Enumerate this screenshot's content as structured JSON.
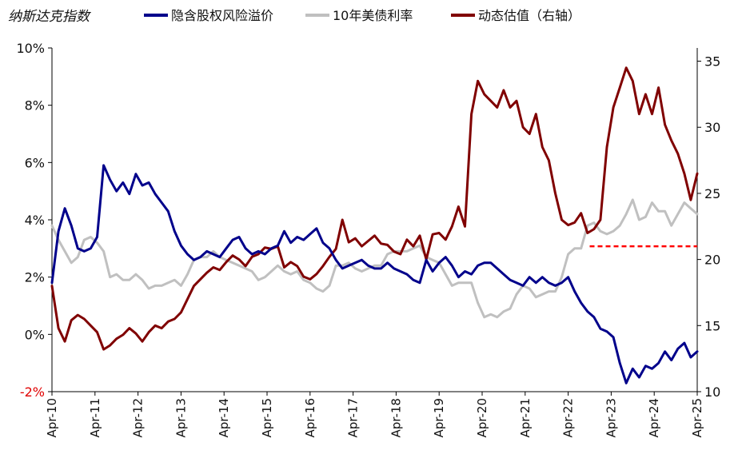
{
  "chart_data": {
    "type": "line",
    "title": "纳斯达克指数",
    "legend_position": "top",
    "grid": false,
    "colors": {
      "erp": "#00008b",
      "us10y": "#c0c0c0",
      "pe": "#800000",
      "reference": "#ff0000",
      "negative_tick": "#e00000"
    },
    "left_axis": {
      "ylim": [
        -2,
        10
      ],
      "ticks": [
        -2,
        0,
        2,
        4,
        6,
        8,
        10
      ],
      "tick_labels": [
        "-2%",
        "0%",
        "2%",
        "4%",
        "6%",
        "8%",
        "10%"
      ]
    },
    "right_axis": {
      "ylim": [
        10,
        36
      ],
      "ticks": [
        10,
        15,
        20,
        25,
        30,
        35
      ],
      "tick_labels": [
        "10",
        "15",
        "20",
        "25",
        "30",
        "35"
      ]
    },
    "x_axis": {
      "xlim": [
        2010.25,
        2025.25
      ],
      "ticks": [
        2010.25,
        2011.25,
        2012.25,
        2013.25,
        2014.25,
        2015.25,
        2016.25,
        2017.25,
        2018.25,
        2019.25,
        2020.25,
        2021.25,
        2022.25,
        2023.25,
        2024.25,
        2025.25
      ],
      "tick_labels": [
        "Apr-10",
        "Apr-11",
        "Apr-12",
        "Apr-13",
        "Apr-14",
        "Apr-15",
        "Apr-16",
        "Apr-17",
        "Apr-18",
        "Apr-19",
        "Apr-20",
        "Apr-21",
        "Apr-22",
        "Apr-23",
        "Apr-24",
        "Apr-25"
      ]
    },
    "series": [
      {
        "name": "隐含股权风险溢价",
        "axis": "left",
        "color": "#00008b",
        "x": [
          2010.25,
          2010.4,
          2010.55,
          2010.7,
          2010.85,
          2011.0,
          2011.15,
          2011.3,
          2011.45,
          2011.6,
          2011.75,
          2011.9,
          2012.05,
          2012.2,
          2012.35,
          2012.5,
          2012.65,
          2012.8,
          2012.95,
          2013.1,
          2013.25,
          2013.4,
          2013.55,
          2013.7,
          2013.85,
          2014.0,
          2014.15,
          2014.3,
          2014.45,
          2014.6,
          2014.75,
          2014.9,
          2015.05,
          2015.2,
          2015.35,
          2015.5,
          2015.65,
          2015.8,
          2015.95,
          2016.1,
          2016.25,
          2016.4,
          2016.55,
          2016.7,
          2016.85,
          2017.0,
          2017.15,
          2017.3,
          2017.45,
          2017.6,
          2017.75,
          2017.9,
          2018.05,
          2018.2,
          2018.35,
          2018.5,
          2018.65,
          2018.8,
          2018.95,
          2019.1,
          2019.25,
          2019.4,
          2019.55,
          2019.7,
          2019.85,
          2020.0,
          2020.15,
          2020.3,
          2020.45,
          2020.6,
          2020.75,
          2020.9,
          2021.05,
          2021.2,
          2021.35,
          2021.5,
          2021.65,
          2021.8,
          2021.95,
          2022.1,
          2022.25,
          2022.4,
          2022.55,
          2022.7,
          2022.85,
          2023.0,
          2023.15,
          2023.3,
          2023.45,
          2023.6,
          2023.75,
          2023.9,
          2024.05,
          2024.2,
          2024.35,
          2024.5,
          2024.65,
          2024.8,
          2024.95,
          2025.1,
          2025.25
        ],
        "values": [
          1.8,
          3.6,
          4.4,
          3.8,
          3.0,
          2.9,
          3.0,
          3.4,
          5.9,
          5.4,
          5.0,
          5.3,
          4.9,
          5.6,
          5.2,
          5.3,
          4.9,
          4.6,
          4.3,
          3.6,
          3.1,
          2.8,
          2.6,
          2.7,
          2.9,
          2.8,
          2.7,
          3.0,
          3.3,
          3.4,
          3.0,
          2.8,
          2.9,
          2.8,
          3.0,
          3.1,
          3.6,
          3.2,
          3.4,
          3.3,
          3.5,
          3.7,
          3.2,
          3.0,
          2.6,
          2.3,
          2.4,
          2.5,
          2.6,
          2.4,
          2.3,
          2.3,
          2.5,
          2.3,
          2.2,
          2.1,
          1.9,
          1.8,
          2.6,
          2.2,
          2.5,
          2.7,
          2.4,
          2.0,
          2.2,
          2.1,
          2.4,
          2.5,
          2.5,
          2.3,
          2.1,
          1.9,
          1.8,
          1.7,
          2.0,
          1.8,
          2.0,
          1.8,
          1.7,
          1.8,
          2.0,
          1.5,
          1.1,
          0.8,
          0.6,
          0.2,
          0.1,
          -0.1,
          -1.0,
          -1.7,
          -1.2,
          -1.5,
          -1.1,
          -1.2,
          -1.0,
          -0.6,
          -0.9,
          -0.5,
          -0.3,
          -0.8,
          -0.6
        ]
      },
      {
        "name": "10年美债利率",
        "axis": "left",
        "color": "#c0c0c0",
        "x": [
          2010.25,
          2010.4,
          2010.55,
          2010.7,
          2010.85,
          2011.0,
          2011.15,
          2011.3,
          2011.45,
          2011.6,
          2011.75,
          2011.9,
          2012.05,
          2012.2,
          2012.35,
          2012.5,
          2012.65,
          2012.8,
          2012.95,
          2013.1,
          2013.25,
          2013.4,
          2013.55,
          2013.7,
          2013.85,
          2014.0,
          2014.15,
          2014.3,
          2014.45,
          2014.6,
          2014.75,
          2014.9,
          2015.05,
          2015.2,
          2015.35,
          2015.5,
          2015.65,
          2015.8,
          2015.95,
          2016.1,
          2016.25,
          2016.4,
          2016.55,
          2016.7,
          2016.85,
          2017.0,
          2017.15,
          2017.3,
          2017.45,
          2017.6,
          2017.75,
          2017.9,
          2018.05,
          2018.2,
          2018.35,
          2018.5,
          2018.65,
          2018.8,
          2018.95,
          2019.1,
          2019.25,
          2019.4,
          2019.55,
          2019.7,
          2019.85,
          2020.0,
          2020.15,
          2020.3,
          2020.45,
          2020.6,
          2020.75,
          2020.9,
          2021.05,
          2021.2,
          2021.35,
          2021.5,
          2021.65,
          2021.8,
          2021.95,
          2022.1,
          2022.25,
          2022.4,
          2022.55,
          2022.7,
          2022.85,
          2023.0,
          2023.15,
          2023.3,
          2023.45,
          2023.6,
          2023.75,
          2023.9,
          2024.05,
          2024.2,
          2024.35,
          2024.5,
          2024.65,
          2024.8,
          2024.95,
          2025.1,
          2025.25
        ],
        "values": [
          3.8,
          3.3,
          2.9,
          2.5,
          2.7,
          3.3,
          3.4,
          3.2,
          2.9,
          2.0,
          2.1,
          1.9,
          1.9,
          2.1,
          1.9,
          1.6,
          1.7,
          1.7,
          1.8,
          1.9,
          1.7,
          2.1,
          2.6,
          2.7,
          2.7,
          2.9,
          2.7,
          2.6,
          2.5,
          2.4,
          2.3,
          2.2,
          1.9,
          2.0,
          2.2,
          2.4,
          2.2,
          2.1,
          2.2,
          1.9,
          1.8,
          1.6,
          1.5,
          1.7,
          2.4,
          2.4,
          2.5,
          2.3,
          2.2,
          2.3,
          2.4,
          2.4,
          2.8,
          2.9,
          2.9,
          2.9,
          3.0,
          3.1,
          2.7,
          2.6,
          2.5,
          2.1,
          1.7,
          1.8,
          1.8,
          1.8,
          1.1,
          0.6,
          0.7,
          0.6,
          0.8,
          0.9,
          1.4,
          1.7,
          1.6,
          1.3,
          1.4,
          1.5,
          1.5,
          2.0,
          2.8,
          3.0,
          3.0,
          3.8,
          3.9,
          3.6,
          3.5,
          3.6,
          3.8,
          4.2,
          4.7,
          4.0,
          4.1,
          4.6,
          4.3,
          4.3,
          3.8,
          4.2,
          4.6,
          4.4,
          4.2
        ]
      },
      {
        "name": "动态估值（右轴）",
        "axis": "right",
        "color": "#800000",
        "x": [
          2010.25,
          2010.4,
          2010.55,
          2010.7,
          2010.85,
          2011.0,
          2011.15,
          2011.3,
          2011.45,
          2011.6,
          2011.75,
          2011.9,
          2012.05,
          2012.2,
          2012.35,
          2012.5,
          2012.65,
          2012.8,
          2012.95,
          2013.1,
          2013.25,
          2013.4,
          2013.55,
          2013.7,
          2013.85,
          2014.0,
          2014.15,
          2014.3,
          2014.45,
          2014.6,
          2014.75,
          2014.9,
          2015.05,
          2015.2,
          2015.35,
          2015.5,
          2015.65,
          2015.8,
          2015.95,
          2016.1,
          2016.25,
          2016.4,
          2016.55,
          2016.7,
          2016.85,
          2017.0,
          2017.15,
          2017.3,
          2017.45,
          2017.6,
          2017.75,
          2017.9,
          2018.05,
          2018.2,
          2018.35,
          2018.5,
          2018.65,
          2018.8,
          2018.95,
          2019.1,
          2019.25,
          2019.4,
          2019.55,
          2019.7,
          2019.85,
          2020.0,
          2020.15,
          2020.3,
          2020.45,
          2020.6,
          2020.75,
          2020.9,
          2021.05,
          2021.2,
          2021.35,
          2021.5,
          2021.65,
          2021.8,
          2021.95,
          2022.1,
          2022.25,
          2022.4,
          2022.55,
          2022.7,
          2022.85,
          2023.0,
          2023.15,
          2023.3,
          2023.45,
          2023.6,
          2023.75,
          2023.9,
          2024.05,
          2024.2,
          2024.35,
          2024.5,
          2024.65,
          2024.8,
          2024.95,
          2025.1,
          2025.25
        ],
        "values": [
          18.0,
          14.8,
          13.8,
          15.4,
          15.8,
          15.5,
          15.0,
          14.5,
          13.2,
          13.5,
          14.0,
          14.3,
          14.8,
          14.4,
          13.8,
          14.5,
          15.0,
          14.8,
          15.3,
          15.5,
          16.0,
          17.0,
          18.0,
          18.5,
          19.0,
          19.4,
          19.2,
          19.8,
          20.3,
          20.0,
          19.5,
          20.2,
          20.4,
          20.9,
          20.8,
          21.0,
          19.4,
          19.8,
          19.5,
          18.7,
          18.5,
          18.9,
          19.5,
          20.2,
          20.8,
          23.0,
          21.3,
          21.6,
          21.0,
          21.4,
          21.8,
          21.2,
          21.1,
          20.6,
          20.4,
          21.5,
          21.0,
          21.8,
          20.0,
          21.9,
          22.0,
          21.5,
          22.5,
          24.0,
          22.5,
          31.0,
          33.5,
          32.5,
          32.0,
          31.5,
          32.8,
          31.5,
          32.0,
          30.0,
          29.5,
          31.0,
          28.5,
          27.5,
          25.0,
          23.0,
          22.6,
          22.8,
          23.5,
          22.0,
          22.3,
          23.0,
          28.5,
          31.5,
          33.0,
          34.5,
          33.5,
          31.0,
          32.5,
          31.0,
          33.0,
          30.2,
          29.0,
          28.0,
          26.5,
          24.5,
          26.5
        ]
      }
    ],
    "reference_lines": [
      {
        "axis": "right",
        "value": 21,
        "x_start": 2022.75,
        "x_end": 2025.25,
        "style": "dashed",
        "color": "#ff0000"
      }
    ]
  }
}
